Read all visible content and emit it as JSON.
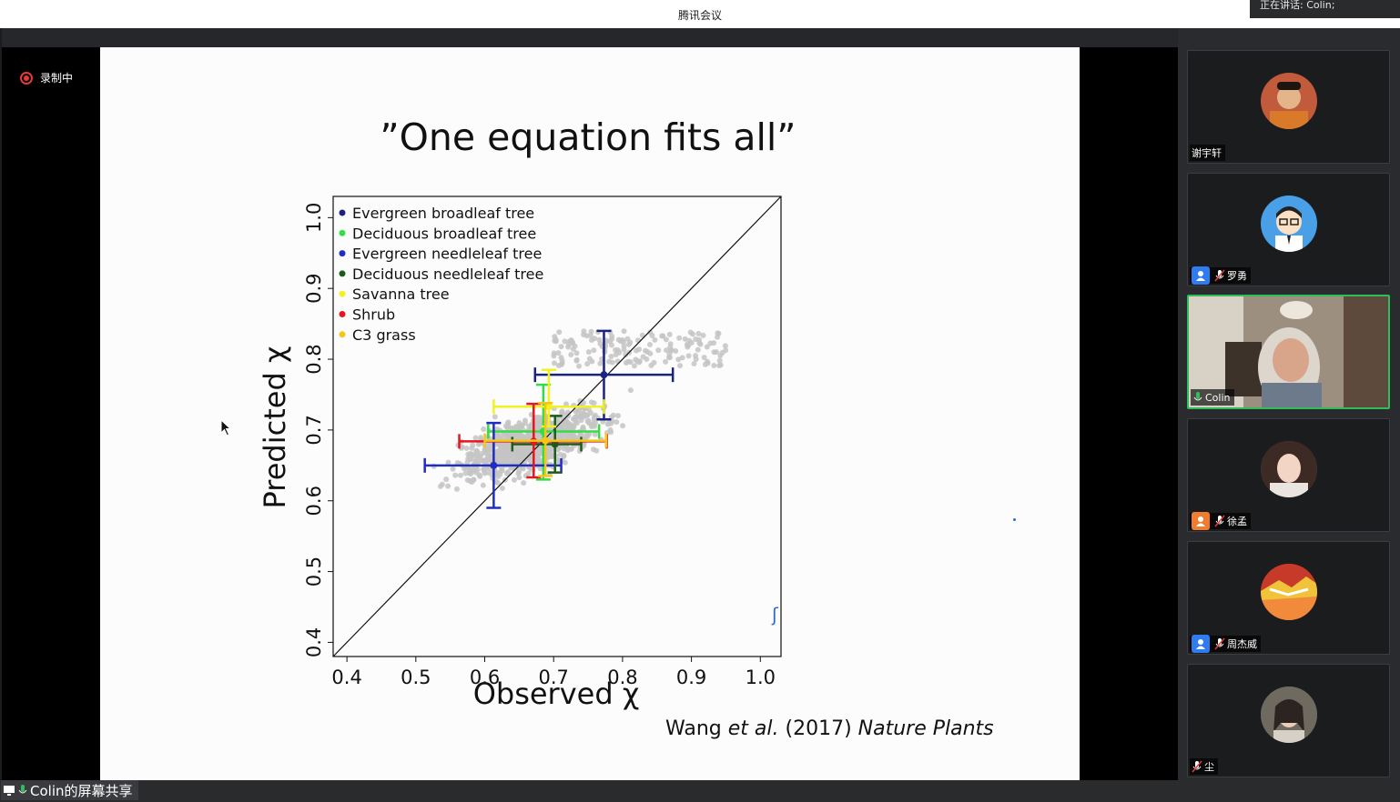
{
  "app": {
    "title": "腾讯会议",
    "speaking": "正在讲话: Colin;"
  },
  "recording": {
    "label": "录制中"
  },
  "share": {
    "label": "Colin的屏幕共享"
  },
  "slide": {
    "title": "”One equation fits all”",
    "citation_author": "Wang",
    "citation_etal": "et al.",
    "citation_year": "(2017)",
    "citation_journal": "Nature Plants"
  },
  "participants": [
    {
      "name": "谢宇轩",
      "muted": false,
      "badge": "none",
      "avatar_color": "#c25a3c"
    },
    {
      "name": "罗勇",
      "muted": true,
      "badge": "blue",
      "avatar_color": "#4aa0e6"
    },
    {
      "name": "Colin",
      "muted": false,
      "badge": "none",
      "active": true
    },
    {
      "name": "徐孟",
      "muted": true,
      "badge": "orange",
      "avatar_color": "#8a6e64"
    },
    {
      "name": "周杰威",
      "muted": true,
      "badge": "blue",
      "avatar_color": "#c73a2a"
    },
    {
      "name": "尘",
      "muted": true,
      "badge": "none",
      "avatar_color": "#6f6a60"
    }
  ],
  "colors": {
    "recording": "#e63a36",
    "active_border": "#2fbe5a",
    "badge_blue": "#2f7bf0",
    "badge_orange": "#f07d2f"
  },
  "chart_data": {
    "type": "scatter",
    "title": "",
    "xlabel": "Observed χ",
    "ylabel": "Predicted χ",
    "xlim": [
      0.38,
      1.03
    ],
    "ylim": [
      0.38,
      1.03
    ],
    "xticks": [
      "0.4",
      "0.5",
      "0.6",
      "0.7",
      "0.8",
      "0.9",
      "1.0"
    ],
    "yticks": [
      "0.4",
      "0.5",
      "0.6",
      "0.7",
      "0.8",
      "0.9",
      "1.0"
    ],
    "reference_line": "1:1",
    "legend_position": "top-left",
    "background_points": "grey cloud of individual observations",
    "series": [
      {
        "name": "Evergreen broadleaf tree",
        "color": "#1a237e",
        "x": 0.773,
        "y": 0.778,
        "xerr": [
          0.673,
          0.873
        ],
        "yerr": [
          0.715,
          0.84
        ]
      },
      {
        "name": "Deciduous broadleaf tree",
        "color": "#33dd44",
        "x": 0.685,
        "y": 0.698,
        "xerr": [
          0.605,
          0.766
        ],
        "yerr": [
          0.63,
          0.764
        ]
      },
      {
        "name": "Evergreen needleleaf tree",
        "color": "#1f2ec0",
        "x": 0.613,
        "y": 0.65,
        "xerr": [
          0.513,
          0.711
        ],
        "yerr": [
          0.59,
          0.71
        ]
      },
      {
        "name": "Deciduous needleleaf tree",
        "color": "#1a5c1a",
        "x": 0.702,
        "y": 0.68,
        "xerr": [
          0.64,
          0.74
        ],
        "yerr": [
          0.64,
          0.72
        ]
      },
      {
        "name": "Savanna tree",
        "color": "#f2f220",
        "x": 0.693,
        "y": 0.733,
        "xerr": [
          0.613,
          0.773
        ],
        "yerr": [
          0.705,
          0.785
        ]
      },
      {
        "name": "Shrub",
        "color": "#e8151c",
        "x": 0.671,
        "y": 0.684,
        "xerr": [
          0.563,
          0.777
        ],
        "yerr": [
          0.633,
          0.737
        ]
      },
      {
        "name": "C3 grass",
        "color": "#f5c518",
        "x": 0.688,
        "y": 0.685,
        "xerr": [
          0.6,
          0.776
        ],
        "yerr": [
          0.635,
          0.738
        ]
      }
    ]
  }
}
